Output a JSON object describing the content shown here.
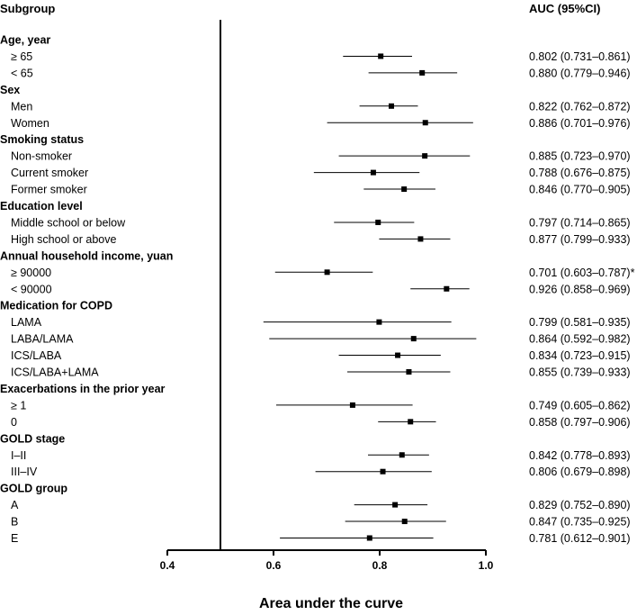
{
  "chart_data": {
    "type": "forest",
    "title": "",
    "column_headers": {
      "subgroup": "Subgroup",
      "estimate": "AUC (95%CI)"
    },
    "xlabel": "Area under the curve",
    "xlim": [
      0.4,
      1.0
    ],
    "xticks": [
      "0.4",
      "0.6",
      "0.8",
      "1.0"
    ],
    "reference_line": 0.5,
    "rows": [
      {
        "kind": "group",
        "label": "Age, year"
      },
      {
        "kind": "sub",
        "label": "≥ 65",
        "auc": 0.802,
        "lo": 0.731,
        "hi": 0.861,
        "text": "0.802 (0.731–0.861)"
      },
      {
        "kind": "sub",
        "label": "< 65",
        "auc": 0.88,
        "lo": 0.779,
        "hi": 0.946,
        "text": "0.880 (0.779–0.946)"
      },
      {
        "kind": "group",
        "label": "Sex"
      },
      {
        "kind": "sub",
        "label": "Men",
        "auc": 0.822,
        "lo": 0.762,
        "hi": 0.872,
        "text": "0.822 (0.762–0.872)"
      },
      {
        "kind": "sub",
        "label": "Women",
        "auc": 0.886,
        "lo": 0.701,
        "hi": 0.976,
        "text": "0.886 (0.701–0.976)"
      },
      {
        "kind": "group",
        "label": "Smoking status"
      },
      {
        "kind": "sub",
        "label": "Non-smoker",
        "auc": 0.885,
        "lo": 0.723,
        "hi": 0.97,
        "text": "0.885 (0.723–0.970)"
      },
      {
        "kind": "sub",
        "label": "Current smoker",
        "auc": 0.788,
        "lo": 0.676,
        "hi": 0.875,
        "text": "0.788 (0.676–0.875)"
      },
      {
        "kind": "sub",
        "label": "Former smoker",
        "auc": 0.846,
        "lo": 0.77,
        "hi": 0.905,
        "text": "0.846 (0.770–0.905)"
      },
      {
        "kind": "group",
        "label": "Education level"
      },
      {
        "kind": "sub",
        "label": "Middle school or below",
        "auc": 0.797,
        "lo": 0.714,
        "hi": 0.865,
        "text": "0.797 (0.714–0.865)"
      },
      {
        "kind": "sub",
        "label": "High school or above",
        "auc": 0.877,
        "lo": 0.799,
        "hi": 0.933,
        "text": "0.877 (0.799–0.933)"
      },
      {
        "kind": "group",
        "label": "Annual household income, yuan"
      },
      {
        "kind": "sub",
        "label": "≥ 90000",
        "auc": 0.701,
        "lo": 0.603,
        "hi": 0.787,
        "text": "0.701 (0.603–0.787)*"
      },
      {
        "kind": "sub",
        "label": "< 90000",
        "auc": 0.926,
        "lo": 0.858,
        "hi": 0.969,
        "text": "0.926 (0.858–0.969)"
      },
      {
        "kind": "group",
        "label": "Medication for COPD"
      },
      {
        "kind": "sub",
        "label": "LAMA",
        "auc": 0.799,
        "lo": 0.581,
        "hi": 0.935,
        "text": "0.799 (0.581–0.935)"
      },
      {
        "kind": "sub",
        "label": "LABA/LAMA",
        "auc": 0.864,
        "lo": 0.592,
        "hi": 0.982,
        "text": "0.864 (0.592–0.982)"
      },
      {
        "kind": "sub",
        "label": "ICS/LABA",
        "auc": 0.834,
        "lo": 0.723,
        "hi": 0.915,
        "text": "0.834 (0.723–0.915)"
      },
      {
        "kind": "sub",
        "label": "ICS/LABA+LAMA",
        "auc": 0.855,
        "lo": 0.739,
        "hi": 0.933,
        "text": "0.855 (0.739–0.933)"
      },
      {
        "kind": "group",
        "label": "Exacerbations in the prior year"
      },
      {
        "kind": "sub",
        "label": "≥ 1",
        "auc": 0.749,
        "lo": 0.605,
        "hi": 0.862,
        "text": "0.749 (0.605–0.862)"
      },
      {
        "kind": "sub",
        "label": "0",
        "auc": 0.858,
        "lo": 0.797,
        "hi": 0.906,
        "text": "0.858 (0.797–0.906)"
      },
      {
        "kind": "group",
        "label": "GOLD stage"
      },
      {
        "kind": "sub",
        "label": "I–II",
        "auc": 0.842,
        "lo": 0.778,
        "hi": 0.893,
        "text": "0.842 (0.778–0.893)"
      },
      {
        "kind": "sub",
        "label": "III–IV",
        "auc": 0.806,
        "lo": 0.679,
        "hi": 0.898,
        "text": "0.806 (0.679–0.898)"
      },
      {
        "kind": "group",
        "label": "GOLD group"
      },
      {
        "kind": "sub",
        "label": "A",
        "auc": 0.829,
        "lo": 0.752,
        "hi": 0.89,
        "text": "0.829 (0.752–0.890)"
      },
      {
        "kind": "sub",
        "label": "B",
        "auc": 0.847,
        "lo": 0.735,
        "hi": 0.925,
        "text": "0.847 (0.735–0.925)"
      },
      {
        "kind": "sub",
        "label": "E",
        "auc": 0.781,
        "lo": 0.612,
        "hi": 0.901,
        "text": "0.781 (0.612–0.901)"
      }
    ]
  }
}
